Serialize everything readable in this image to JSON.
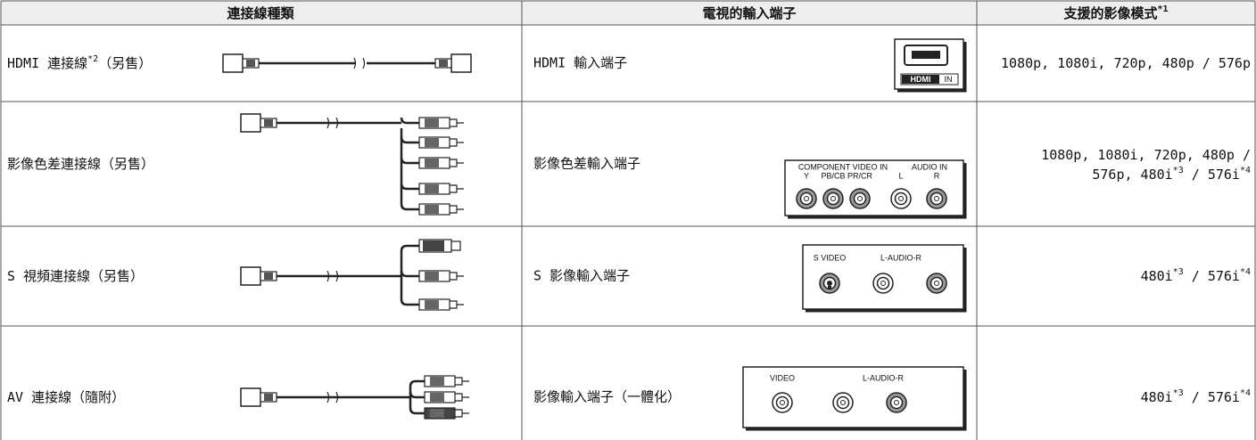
{
  "table": {
    "header": [
      [
        {
          "t": "連接線種類"
        }
      ],
      [
        {
          "t": "電視的輸入端子"
        }
      ],
      [
        {
          "t": "支援的影像模式"
        },
        {
          "s": "*1"
        }
      ]
    ],
    "rows": [
      {
        "cable": [
          {
            "t": "HDMI 連接線"
          },
          {
            "s": "*2"
          },
          {
            "t": "（另售）"
          }
        ],
        "port": "HDMI 輸入端子",
        "panel": [
          "HDMI",
          "IN"
        ],
        "modes": [
          [
            {
              "t": "1080p, 1080i, 720p, 480p / 576p"
            }
          ]
        ]
      },
      {
        "cable": [
          {
            "t": "影像色差連接線（另售）"
          }
        ],
        "port": "影像色差輸入端子",
        "panel": [
          "COMPONENT VIDEO IN",
          "AUDIO IN",
          "Y",
          "PB/CB",
          "PR/CR",
          "L",
          "R"
        ],
        "modes": [
          [
            {
              "t": "1080p, 1080i, 720p, 480p /"
            }
          ],
          [
            {
              "t": "576p, 480i"
            },
            {
              "s": "*3"
            },
            {
              "t": " / 576i"
            },
            {
              "s": "*4"
            }
          ]
        ]
      },
      {
        "cable": [
          {
            "t": "S 視頻連接線（另售）"
          }
        ],
        "port": "S 影像輸入端子",
        "panel": [
          "S VIDEO",
          "L-AUDIO-R"
        ],
        "modes": [
          [
            {
              "t": "480i"
            },
            {
              "s": "*3"
            },
            {
              "t": " / 576i"
            },
            {
              "s": "*4"
            }
          ]
        ]
      },
      {
        "cable": [
          {
            "t": "AV 連接線（隨附）"
          }
        ],
        "port": "影像輸入端子（一體化）",
        "panel": [
          "VIDEO",
          "L-AUDIO-R"
        ],
        "modes": [
          [
            {
              "t": "480i"
            },
            {
              "s": "*3"
            },
            {
              "t": " / 576i"
            },
            {
              "s": "*4"
            }
          ]
        ]
      }
    ]
  }
}
